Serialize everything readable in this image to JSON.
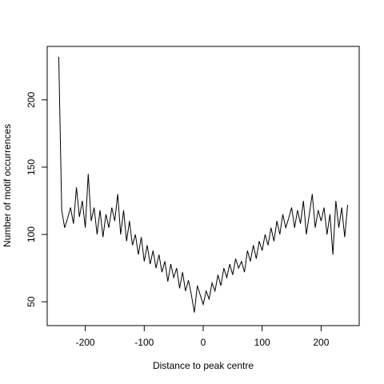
{
  "chart_data": {
    "type": "line",
    "xlabel": "Distance to peak centre",
    "ylabel": "Number of motif occurrences",
    "x": [
      -245,
      -240,
      -235,
      -230,
      -225,
      -220,
      -215,
      -210,
      -205,
      -200,
      -195,
      -190,
      -185,
      -180,
      -175,
      -170,
      -165,
      -160,
      -155,
      -150,
      -145,
      -140,
      -135,
      -130,
      -125,
      -120,
      -115,
      -110,
      -105,
      -100,
      -95,
      -90,
      -85,
      -80,
      -75,
      -70,
      -65,
      -60,
      -55,
      -50,
      -45,
      -40,
      -35,
      -30,
      -25,
      -20,
      -15,
      -10,
      -5,
      0,
      5,
      10,
      15,
      20,
      25,
      30,
      35,
      40,
      45,
      50,
      55,
      60,
      65,
      70,
      75,
      80,
      85,
      90,
      95,
      100,
      105,
      110,
      115,
      120,
      125,
      130,
      135,
      140,
      145,
      150,
      155,
      160,
      165,
      170,
      175,
      180,
      185,
      190,
      195,
      200,
      205,
      210,
      215,
      220,
      225,
      230,
      235,
      240,
      245
    ],
    "series": [
      {
        "name": "occurrences",
        "color": "#000000",
        "values": [
          232,
          118,
          105,
          112,
          120,
          108,
          135,
          113,
          125,
          105,
          145,
          110,
          120,
          100,
          118,
          98,
          115,
          105,
          120,
          110,
          130,
          100,
          118,
          95,
          110,
          92,
          100,
          85,
          98,
          80,
          92,
          78,
          88,
          75,
          85,
          72,
          80,
          65,
          78,
          68,
          75,
          60,
          72,
          58,
          66,
          55,
          42,
          62,
          55,
          48,
          58,
          52,
          64,
          58,
          70,
          62,
          75,
          68,
          78,
          70,
          82,
          75,
          80,
          72,
          88,
          80,
          92,
          82,
          95,
          88,
          100,
          92,
          105,
          95,
          110,
          100,
          115,
          105,
          112,
          120,
          105,
          118,
          108,
          125,
          100,
          115,
          130,
          105,
          118,
          110,
          120,
          100,
          115,
          85,
          125,
          105,
          120,
          98,
          122
        ]
      }
    ],
    "xlim": [
      -264.6,
      264.6
    ],
    "xticks": [
      -200,
      -100,
      0,
      100,
      200
    ],
    "ylim": [
      32.3,
      239.7
    ],
    "yticks": [
      50,
      100,
      150,
      200
    ]
  }
}
